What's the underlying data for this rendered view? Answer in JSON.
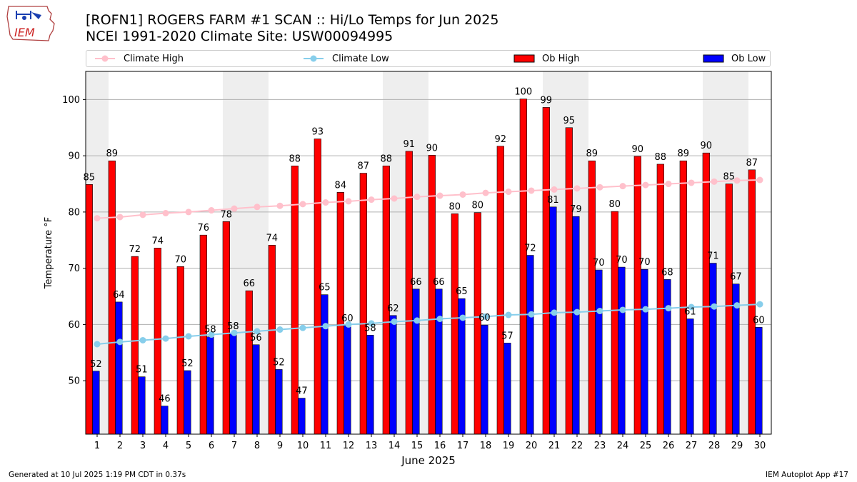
{
  "header": {
    "logo_text": "IEM",
    "title_line1": "[ROFN1] ROGERS FARM #1 SCAN :: Hi/Lo Temps for Jun 2025",
    "title_line2": "NCEI 1991-2020 Climate Site: USW00094995"
  },
  "legend": {
    "climate_high": "Climate High",
    "climate_low": "Climate Low",
    "ob_high": "Ob High",
    "ob_low": "Ob Low"
  },
  "colors": {
    "ob_high": "#ff0000",
    "ob_low": "#0000ff",
    "climate_high": "#ffc0cb",
    "climate_low": "#87ceeb",
    "weekend_band": "#eeeeee",
    "grid": "#b0b0b0"
  },
  "footer": {
    "left": "Generated at 10 Jul 2025 1:19 PM CDT in 0.37s",
    "right": "IEM Autoplot App #17"
  },
  "chart_data": {
    "type": "bar",
    "xlabel": "June 2025",
    "ylabel": "Temperature °F",
    "ylim": [
      40.5,
      105
    ],
    "yticks": [
      50,
      60,
      70,
      80,
      90,
      100
    ],
    "grid": "horizontal",
    "legend_position": "top",
    "categories": [
      "1",
      "2",
      "3",
      "4",
      "5",
      "6",
      "7",
      "8",
      "9",
      "10",
      "11",
      "12",
      "13",
      "14",
      "15",
      "16",
      "17",
      "18",
      "19",
      "20",
      "21",
      "22",
      "23",
      "24",
      "25",
      "26",
      "27",
      "28",
      "29",
      "30"
    ],
    "shaded_days": [
      1,
      7,
      8,
      14,
      15,
      21,
      22,
      28,
      29
    ],
    "series": [
      {
        "name": "Ob High",
        "type": "bar",
        "values": [
          85,
          89,
          72,
          74,
          70,
          76,
          78,
          66,
          74,
          88,
          93,
          84,
          87,
          88,
          91,
          90,
          80,
          80,
          92,
          100,
          99,
          95,
          89,
          80,
          90,
          88,
          89,
          90,
          85,
          87
        ],
        "plotted": [
          84.9,
          89.1,
          72.1,
          73.6,
          70.3,
          75.9,
          78.3,
          66.0,
          74.1,
          88.2,
          93.0,
          83.5,
          86.9,
          88.2,
          90.8,
          90.1,
          79.7,
          79.9,
          91.7,
          100.1,
          98.6,
          95.0,
          89.1,
          80.1,
          89.9,
          88.5,
          89.1,
          90.5,
          85.0,
          87.5
        ]
      },
      {
        "name": "Ob Low",
        "type": "bar",
        "values": [
          52,
          64,
          51,
          46,
          52,
          58,
          58,
          56,
          52,
          47,
          65,
          60,
          58,
          62,
          66,
          66,
          65,
          60,
          57,
          72,
          81,
          79,
          70,
          70,
          70,
          68,
          61,
          71,
          67,
          60
        ],
        "plotted": [
          51.7,
          64.0,
          50.7,
          45.5,
          51.8,
          57.8,
          58.4,
          56.4,
          52.0,
          46.9,
          65.3,
          59.8,
          58.1,
          61.6,
          66.3,
          66.3,
          64.6,
          59.9,
          56.7,
          72.3,
          80.9,
          79.2,
          69.7,
          70.2,
          69.8,
          68.0,
          61.0,
          70.9,
          67.2,
          59.5
        ]
      },
      {
        "name": "Climate High",
        "type": "line",
        "values": [
          78.9,
          79.1,
          79.5,
          79.8,
          80.0,
          80.3,
          80.6,
          80.9,
          81.1,
          81.4,
          81.7,
          81.9,
          82.2,
          82.4,
          82.7,
          82.9,
          83.1,
          83.4,
          83.6,
          83.8,
          84.0,
          84.2,
          84.4,
          84.6,
          84.8,
          85.0,
          85.2,
          85.4,
          85.6,
          85.7
        ]
      },
      {
        "name": "Climate Low",
        "type": "line",
        "values": [
          56.5,
          56.9,
          57.2,
          57.5,
          57.9,
          58.2,
          58.5,
          58.8,
          59.1,
          59.4,
          59.7,
          60.0,
          60.2,
          60.5,
          60.7,
          61.0,
          61.2,
          61.4,
          61.7,
          61.8,
          62.1,
          62.2,
          62.4,
          62.6,
          62.7,
          62.9,
          63.1,
          63.2,
          63.4,
          63.6
        ]
      }
    ]
  }
}
